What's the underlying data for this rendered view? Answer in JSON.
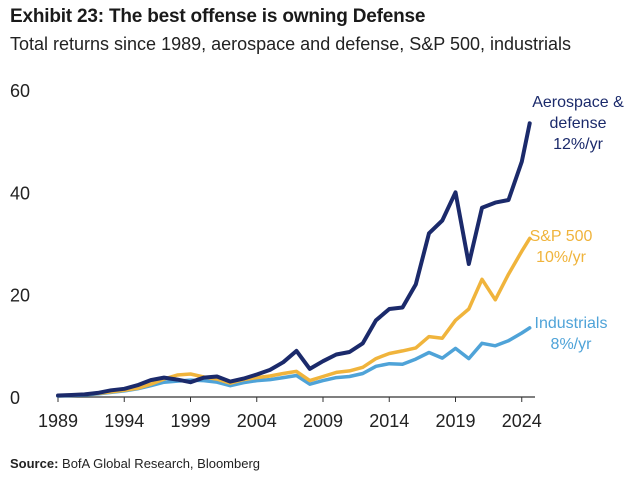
{
  "chart_data": {
    "type": "line",
    "title": "Exhibit 23: The best offense is owning Defense",
    "subtitle": "Total returns since 1989, aerospace and defense, S&P 500, industrials",
    "source_label": "Source:",
    "source_text": "BofA Global Research, Bloomberg",
    "xlabel": "",
    "ylabel": "",
    "xlim": [
      1989,
      2025
    ],
    "ylim": [
      0,
      60
    ],
    "xticks": [
      "1989",
      "1994",
      "1999",
      "2004",
      "2009",
      "2014",
      "2019",
      "2024"
    ],
    "yticks": [
      "0",
      "20",
      "40",
      "60"
    ],
    "x": [
      1989,
      1990,
      1991,
      1992,
      1993,
      1994,
      1995,
      1996,
      1997,
      1998,
      1999,
      2000,
      2001,
      2002,
      2003,
      2004,
      2005,
      2006,
      2007,
      2008,
      2009,
      2010,
      2011,
      2012,
      2013,
      2014,
      2015,
      2016,
      2017,
      2018,
      2019,
      2020,
      2021,
      2022,
      2023,
      2024,
      2024.6
    ],
    "series": [
      {
        "name": "Aerospace & defense",
        "legend_lines": [
          "Aerospace &",
          "defense",
          "12%/yr"
        ],
        "color": "#1b2a6b",
        "values": [
          0.3,
          0.4,
          0.5,
          0.8,
          1.3,
          1.6,
          2.3,
          3.3,
          3.8,
          3.4,
          2.9,
          3.8,
          4.0,
          3.0,
          3.6,
          4.4,
          5.3,
          6.8,
          9.0,
          5.5,
          7.0,
          8.3,
          8.8,
          10.5,
          15.0,
          17.2,
          17.5,
          22.0,
          32.0,
          34.5,
          40.0,
          26.0,
          37.0,
          38.0,
          38.5,
          46.0,
          53.5
        ]
      },
      {
        "name": "S&P 500",
        "legend_lines": [
          "S&P 500",
          "10%/yr"
        ],
        "color": "#f0b43c",
        "values": [
          0.3,
          0.4,
          0.5,
          0.7,
          1.0,
          1.3,
          1.7,
          2.5,
          3.5,
          4.3,
          4.5,
          3.9,
          3.5,
          2.7,
          3.4,
          3.8,
          4.1,
          4.6,
          5.0,
          3.2,
          4.0,
          4.8,
          5.1,
          5.8,
          7.5,
          8.5,
          9.0,
          9.6,
          11.8,
          11.5,
          15.0,
          17.2,
          23.0,
          19.0,
          24.0,
          28.5,
          31.0
        ]
      },
      {
        "name": "Industrials",
        "legend_lines": [
          "Industrials",
          "8%/yr"
        ],
        "color": "#4fa3d8",
        "values": [
          0.2,
          0.3,
          0.4,
          0.6,
          0.9,
          1.2,
          1.6,
          2.2,
          2.9,
          3.1,
          3.3,
          3.2,
          2.9,
          2.2,
          2.8,
          3.2,
          3.4,
          3.8,
          4.2,
          2.5,
          3.2,
          3.8,
          4.0,
          4.6,
          6.0,
          6.5,
          6.4,
          7.4,
          8.7,
          7.6,
          9.5,
          7.5,
          10.5,
          10.0,
          11.0,
          12.5,
          13.5
        ]
      }
    ]
  }
}
